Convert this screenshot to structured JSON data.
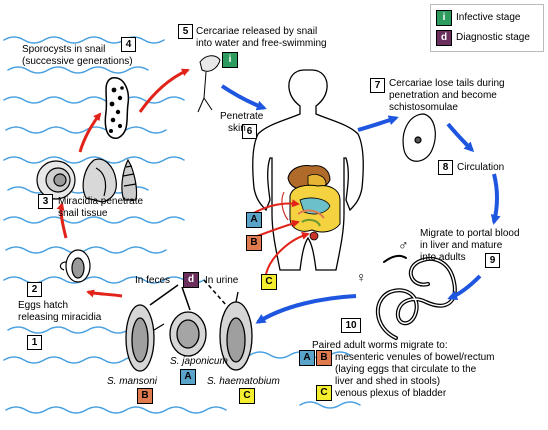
{
  "legend": {
    "infective_letter": "i",
    "infective_text": "Infective stage",
    "diagnostic_letter": "d",
    "diagnostic_text": "Diagnostic stage"
  },
  "steps": {
    "s1": "1",
    "s2": "2",
    "s3": "3",
    "s4": "4",
    "s5": "5",
    "s6": "6",
    "s7": "7",
    "s8": "8",
    "s9": "9",
    "s10": "10"
  },
  "text": {
    "sporocysts": [
      "Sporocysts in snail",
      "(successive generations)"
    ],
    "cercariae_released": [
      "Cercariae released by snail",
      "into water and free-swimming"
    ],
    "penetrate_skin": [
      "Penetrate",
      "skin"
    ],
    "cercariae_lose": [
      "Cercariae lose tails during",
      "penetration and become",
      "schistosomulae"
    ],
    "circulation": "Circulation",
    "migrate_portal": [
      "Migrate to portal blood",
      "in liver and mature",
      "into adults"
    ],
    "miracidia": [
      "Miracidia penetrate",
      "snail tissue"
    ],
    "eggs_hatch": [
      "Eggs hatch",
      "releasing miracidia"
    ],
    "in_feces": "In feces",
    "in_urine": "In urine",
    "s_japonicum": "S. japonicum",
    "s_mansoni": "S. mansoni",
    "s_haematobium": "S. haematobium",
    "paired_adult": [
      "Paired adult worms migrate to:",
      "mesenteric venules of bowel/rectum",
      "(laying eggs that circulate to the",
      "liver and shed in stools)",
      "venous plexus of bladder"
    ],
    "male_symbol": "♂",
    "female_symbol": "♀"
  },
  "tags": {
    "a": "A",
    "b": "B",
    "c": "C",
    "d": "d",
    "i": "i"
  },
  "colors": {
    "infective": "#2e9b5e",
    "diagnostic": "#6b2f5e",
    "tag_a": "#5aa3c9",
    "tag_b": "#e07a4f",
    "tag_c": "#f4ee2e",
    "red_arrow": "#e2231a",
    "blue_arrow": "#1e56e0",
    "water": "#4aa0e0"
  }
}
